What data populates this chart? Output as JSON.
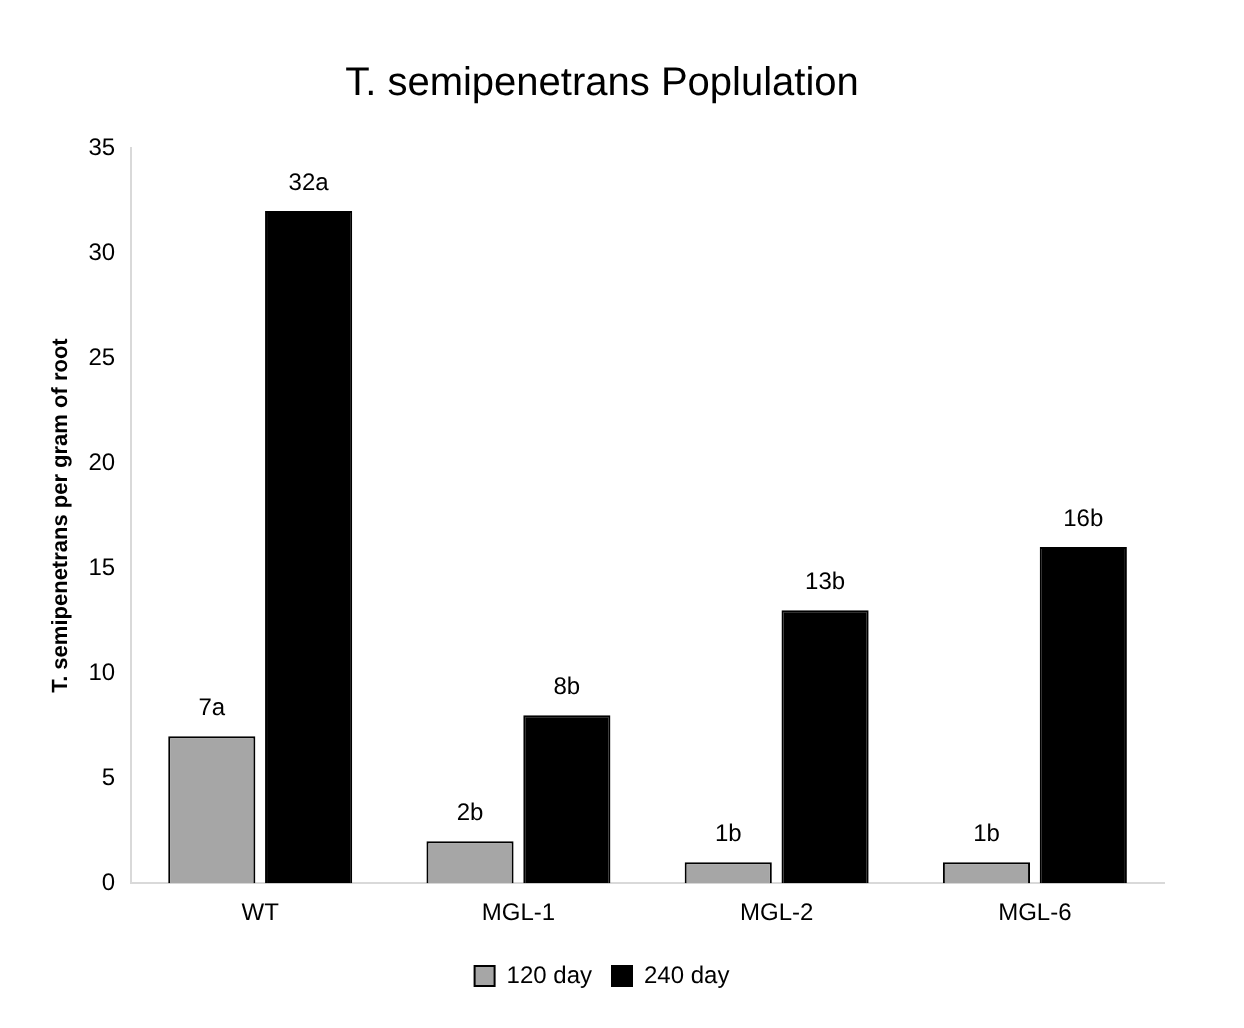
{
  "chart_data": {
    "type": "bar",
    "title": "T. semipenetrans Poplulation",
    "ylabel": "T. semipenetrans per gram of root",
    "categories": [
      "WT",
      "MGL-1",
      "MGL-2",
      "MGL-6"
    ],
    "series": [
      {
        "name": "120 day",
        "color": "#a6a6a6",
        "values": [
          7,
          2,
          1,
          1
        ],
        "value_labels": [
          "7a",
          "2b",
          "1b",
          "1b"
        ]
      },
      {
        "name": "240 day",
        "color": "#000000",
        "values": [
          32,
          8,
          13,
          16
        ],
        "value_labels": [
          "32a",
          "8b",
          "13b",
          "16b"
        ]
      }
    ],
    "ylim": [
      0,
      35
    ],
    "yticks": [
      0,
      5,
      10,
      15,
      20,
      25,
      30,
      35
    ],
    "grid": false,
    "legend": "bottom"
  }
}
